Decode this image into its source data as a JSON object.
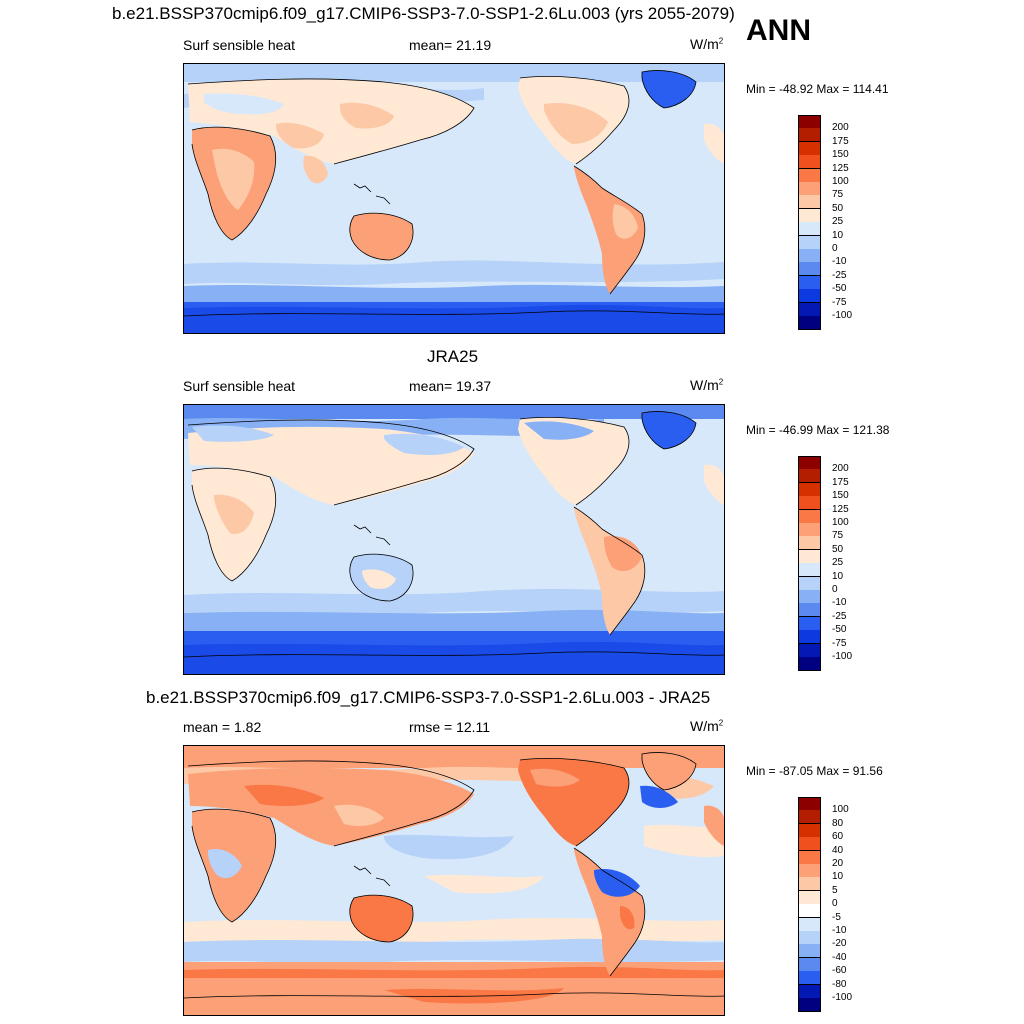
{
  "figure": {
    "season_label": "ANN"
  },
  "panels": [
    {
      "id": "model",
      "title": "b.e21.BSSP370cmip6.f09_g17.CMIP6-SSP3-7.0-SSP1-2.6Lu.003 (yrs 2055-2079)",
      "left_label": "Surf sensible heat",
      "center_label": "mean=  21.19",
      "units_base": "W/m",
      "units_exp": "2",
      "minmax": "Min = -48.92 Max = 114.41",
      "colorbar": {
        "labels": [
          "200",
          "175",
          "150",
          "125",
          "100",
          "75",
          "50",
          "25",
          "10",
          "0",
          "-10",
          "-25",
          "-50",
          "-75",
          "-100"
        ],
        "colors": [
          "#8c0000",
          "#b41e00",
          "#d73000",
          "#f0501e",
          "#fa7846",
          "#fca078",
          "#fdc8a6",
          "#ffe8d4",
          "#d7e8fb",
          "#b6d2f8",
          "#88b0f4",
          "#5a8af0",
          "#2a5ef0",
          "#0c3ae0",
          "#0418b4",
          "#000080"
        ]
      }
    },
    {
      "id": "obs",
      "title": "JRA25",
      "left_label": "Surf sensible heat",
      "center_label": "mean=  19.37",
      "units_base": "W/m",
      "units_exp": "2",
      "minmax": "Min = -46.99 Max = 121.38",
      "colorbar": {
        "labels": [
          "200",
          "175",
          "150",
          "125",
          "100",
          "75",
          "50",
          "25",
          "10",
          "0",
          "-10",
          "-25",
          "-50",
          "-75",
          "-100"
        ],
        "colors": [
          "#8c0000",
          "#b41e00",
          "#d73000",
          "#f0501e",
          "#fa7846",
          "#fca078",
          "#fdc8a6",
          "#ffe8d4",
          "#d7e8fb",
          "#b6d2f8",
          "#88b0f4",
          "#5a8af0",
          "#2a5ef0",
          "#0c3ae0",
          "#0418b4",
          "#000080"
        ]
      }
    },
    {
      "id": "diff",
      "title": "b.e21.BSSP370cmip6.f09_g17.CMIP6-SSP3-7.0-SSP1-2.6Lu.003 - JRA25",
      "left_label": "mean =   1.82",
      "center_label": "rmse =  12.11",
      "units_base": "W/m",
      "units_exp": "2",
      "minmax": "Min = -87.05 Max =  91.56",
      "colorbar": {
        "labels": [
          "100",
          "80",
          "60",
          "40",
          "20",
          "10",
          "5",
          "0",
          "-5",
          "-10",
          "-20",
          "-40",
          "-60",
          "-80",
          "-100"
        ],
        "colors": [
          "#8c0000",
          "#b41e00",
          "#d73000",
          "#f0501e",
          "#fa7846",
          "#fca078",
          "#fdc8a6",
          "#ffe8d4",
          "#ffffff",
          "#d7e8fb",
          "#b6d2f8",
          "#88b0f4",
          "#5a8af0",
          "#2a5ef0",
          "#0418b4",
          "#000080"
        ]
      }
    }
  ]
}
